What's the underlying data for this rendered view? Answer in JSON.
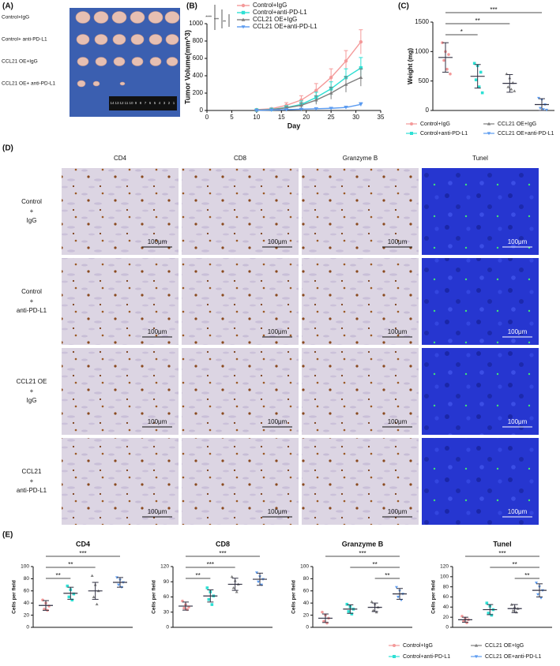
{
  "panel_a": {
    "label": "(A)",
    "rows": [
      "Control+IgG",
      "Control+ anti-PD-L1",
      "CCL21 OE+IgG",
      "CCL21 OE+ anti-PD-L1"
    ],
    "ruler": [
      "14",
      "13",
      "12",
      "11",
      "10",
      "9",
      "8",
      "7",
      "6",
      "5",
      "4",
      "3",
      "2",
      "1"
    ]
  },
  "panel_d": {
    "label": "(D)",
    "columns": [
      "CD4",
      "CD8",
      "Granzyme B",
      "Tunel"
    ],
    "rows": [
      [
        "Control",
        "+",
        "IgG"
      ],
      [
        "Control",
        "+",
        "anti-PD-L1"
      ],
      [
        "CCL21 OE",
        "+",
        "IgG"
      ],
      [
        "CCL21",
        "+",
        "anti-PD-L1"
      ]
    ],
    "scale_bar": "100μm"
  },
  "panel_e": {
    "label": "(E)",
    "legend": [
      {
        "name": "Control+IgG",
        "color": "#f49a9a",
        "marker": "circle"
      },
      {
        "name": "Control+anti-PD-L1",
        "color": "#2ee0d4",
        "marker": "square"
      },
      {
        "name": "CCL21 OE+IgG",
        "color": "#7f7f7f",
        "marker": "triangle"
      },
      {
        "name": "CCL21 OE+anti-PD-L1",
        "color": "#5b9bf0",
        "marker": "triangle-down"
      }
    ]
  },
  "chart_data": [
    {
      "type": "line",
      "label": "(B)",
      "x_label": "Day",
      "y_label": "Tumor Volume(mm^3)",
      "x": [
        10,
        13,
        16,
        19,
        22,
        25,
        28,
        31
      ],
      "xlim": [
        0,
        35
      ],
      "xticks": [
        0,
        5,
        10,
        15,
        20,
        25,
        30,
        35
      ],
      "ylim": [
        0,
        1000
      ],
      "yticks": [
        0,
        200,
        400,
        600,
        800,
        1000
      ],
      "annotations": [
        "****",
        "***",
        "**"
      ],
      "series": [
        {
          "name": "Control+IgG",
          "color": "#f49a9a",
          "marker": "circle",
          "values": [
            10,
            20,
            60,
            120,
            230,
            380,
            570,
            790
          ],
          "errors": [
            5,
            10,
            30,
            50,
            80,
            100,
            120,
            140
          ]
        },
        {
          "name": "Control+anti-PD-L1",
          "color": "#2ee0d4",
          "marker": "square",
          "values": [
            5,
            12,
            35,
            70,
            150,
            250,
            380,
            490
          ],
          "errors": [
            5,
            8,
            20,
            40,
            60,
            80,
            100,
            120
          ]
        },
        {
          "name": "CCL21 OE+IgG",
          "color": "#7f7f7f",
          "marker": "triangle",
          "values": [
            5,
            10,
            30,
            60,
            120,
            200,
            300,
            380
          ],
          "errors": [
            3,
            6,
            15,
            30,
            50,
            70,
            90,
            100
          ]
        },
        {
          "name": "CCL21 OE+anti-PD-L1",
          "color": "#5b9bf0",
          "marker": "triangle-down",
          "values": [
            2,
            5,
            10,
            15,
            20,
            25,
            35,
            70
          ],
          "errors": [
            2,
            3,
            5,
            8,
            10,
            12,
            15,
            20
          ]
        }
      ]
    },
    {
      "type": "dot",
      "label": "(C)",
      "y_label": "Weight (mg)",
      "ylim": [
        0,
        1500
      ],
      "yticks": [
        0,
        500,
        1000,
        1500
      ],
      "series": [
        {
          "name": "Control+IgG",
          "color": "#f49a9a",
          "marker": "circle",
          "values": [
            1150,
            1000,
            950,
            850,
            700,
            620
          ],
          "mean": 900,
          "sd": 250
        },
        {
          "name": "Control+anti-PD-L1",
          "color": "#2ee0d4",
          "marker": "square",
          "values": [
            800,
            760,
            650,
            520,
            400,
            300
          ],
          "mean": 580,
          "sd": 200
        },
        {
          "name": "CCL21 OE+IgG",
          "color": "#7f7f7f",
          "marker": "triangle",
          "values": [
            620,
            550,
            470,
            400,
            360,
            330
          ],
          "mean": 460,
          "sd": 150
        },
        {
          "name": "CCL21 OE+anti-PD-L1",
          "color": "#5b9bf0",
          "marker": "triangle-down",
          "values": [
            210,
            180,
            100,
            40,
            20,
            10
          ],
          "mean": 100,
          "sd": 100
        }
      ],
      "brackets": [
        {
          "from": 0,
          "to": 3,
          "text": "***"
        },
        {
          "from": 0,
          "to": 2,
          "text": "**"
        },
        {
          "from": 0,
          "to": 1,
          "text": "*"
        }
      ]
    },
    {
      "type": "dot",
      "title": "CD4",
      "y_label": "Cells per field",
      "ylim": [
        0,
        100
      ],
      "yticks": [
        0,
        20,
        40,
        60,
        80,
        100
      ],
      "series": [
        {
          "values": [
            45,
            40,
            35,
            30,
            28
          ],
          "mean": 36,
          "sd": 8
        },
        {
          "values": [
            68,
            62,
            55,
            50,
            45
          ],
          "mean": 56,
          "sd": 10
        },
        {
          "values": [
            85,
            70,
            60,
            50,
            38
          ],
          "mean": 60,
          "sd": 14
        },
        {
          "values": [
            82,
            78,
            74,
            70,
            66
          ],
          "mean": 74,
          "sd": 8
        }
      ],
      "brackets": [
        {
          "from": 0,
          "to": 3,
          "text": "***"
        },
        {
          "from": 0,
          "to": 2,
          "text": "**"
        },
        {
          "from": 0,
          "to": 1,
          "text": "**"
        }
      ]
    },
    {
      "type": "dot",
      "title": "CD8",
      "y_label": "Cells per field",
      "ylim": [
        0,
        120
      ],
      "yticks": [
        0,
        30,
        60,
        90,
        120
      ],
      "series": [
        {
          "values": [
            52,
            45,
            40,
            38,
            35
          ],
          "mean": 42,
          "sd": 8
        },
        {
          "values": [
            78,
            70,
            62,
            55,
            45
          ],
          "mean": 62,
          "sd": 12
        },
        {
          "values": [
            100,
            92,
            85,
            78,
            70
          ],
          "mean": 85,
          "sd": 12
        },
        {
          "values": [
            108,
            100,
            95,
            90,
            84
          ],
          "mean": 95,
          "sd": 12
        }
      ],
      "brackets": [
        {
          "from": 0,
          "to": 3,
          "text": "***"
        },
        {
          "from": 0,
          "to": 2,
          "text": "***"
        },
        {
          "from": 0,
          "to": 1,
          "text": "**"
        }
      ]
    },
    {
      "type": "dot",
      "title": "Granzyme B",
      "y_label": "Cells per field",
      "ylim": [
        0,
        100
      ],
      "yticks": [
        0,
        20,
        40,
        60,
        80,
        100
      ],
      "series": [
        {
          "values": [
            25,
            20,
            15,
            10,
            7
          ],
          "mean": 15,
          "sd": 7
        },
        {
          "values": [
            38,
            34,
            30,
            26,
            22
          ],
          "mean": 30,
          "sd": 7
        },
        {
          "values": [
            42,
            38,
            33,
            28,
            25
          ],
          "mean": 33,
          "sd": 7
        },
        {
          "values": [
            66,
            60,
            55,
            50,
            45
          ],
          "mean": 55,
          "sd": 9
        }
      ],
      "brackets": [
        {
          "from": 0,
          "to": 3,
          "text": "***"
        },
        {
          "from": 1,
          "to": 3,
          "text": "**"
        },
        {
          "from": 2,
          "to": 3,
          "text": "**"
        }
      ]
    },
    {
      "type": "dot",
      "title": "Tunel",
      "y_label": "Cells per field",
      "ylim": [
        0,
        120
      ],
      "yticks": [
        0,
        20,
        40,
        60,
        80,
        100,
        120
      ],
      "series": [
        {
          "values": [
            22,
            18,
            15,
            12,
            9
          ],
          "mean": 15,
          "sd": 5
        },
        {
          "values": [
            48,
            42,
            35,
            28,
            24
          ],
          "mean": 35,
          "sd": 10
        },
        {
          "values": [
            45,
            40,
            37,
            33,
            30
          ],
          "mean": 37,
          "sd": 8
        },
        {
          "values": [
            88,
            80,
            73,
            65,
            58
          ],
          "mean": 73,
          "sd": 13
        }
      ],
      "brackets": [
        {
          "from": 0,
          "to": 3,
          "text": "***"
        },
        {
          "from": 1,
          "to": 3,
          "text": "**"
        },
        {
          "from": 2,
          "to": 3,
          "text": "**"
        }
      ]
    }
  ]
}
